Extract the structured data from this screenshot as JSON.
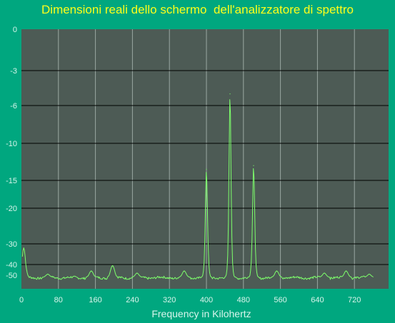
{
  "chart_data": {
    "type": "line",
    "title": "Dimensioni reali dello schermo  dell'analizzatore di spettro",
    "xlabel": "Frequency in Kilohertz",
    "ylabel": "",
    "x_ticks": [
      "0",
      "80",
      "160",
      "240",
      "320",
      "400",
      "480",
      "560",
      "640",
      "720"
    ],
    "y_ticks": [
      "0",
      "-3",
      "-6",
      "-10",
      "-15",
      "-20",
      "-30",
      "-40",
      "-50"
    ],
    "xlim": [
      0,
      765
    ],
    "grid": true,
    "colors": {
      "background": "#00a77f",
      "plot_area": "#4d5b55",
      "trace": "#7dff6b",
      "title": "#ffff1a",
      "labels": "#d8f5ec",
      "vertical_grid": "#9aa8a2",
      "horizontal_grid": "#000000"
    },
    "series": [
      {
        "peaks": [
          {
            "x": 5,
            "y": -32
          },
          {
            "x": 57,
            "y": -49
          },
          {
            "x": 151,
            "y": -46
          },
          {
            "x": 197,
            "y": -41
          },
          {
            "x": 250,
            "y": -48
          },
          {
            "x": 352,
            "y": -46
          },
          {
            "x": 400,
            "y": -13.5
          },
          {
            "x": 451,
            "y": -5
          },
          {
            "x": 502,
            "y": -13
          },
          {
            "x": 552,
            "y": -46
          },
          {
            "x": 655,
            "y": -48
          },
          {
            "x": 702,
            "y": -46
          },
          {
            "x": 752,
            "y": -49
          }
        ]
      }
    ]
  }
}
